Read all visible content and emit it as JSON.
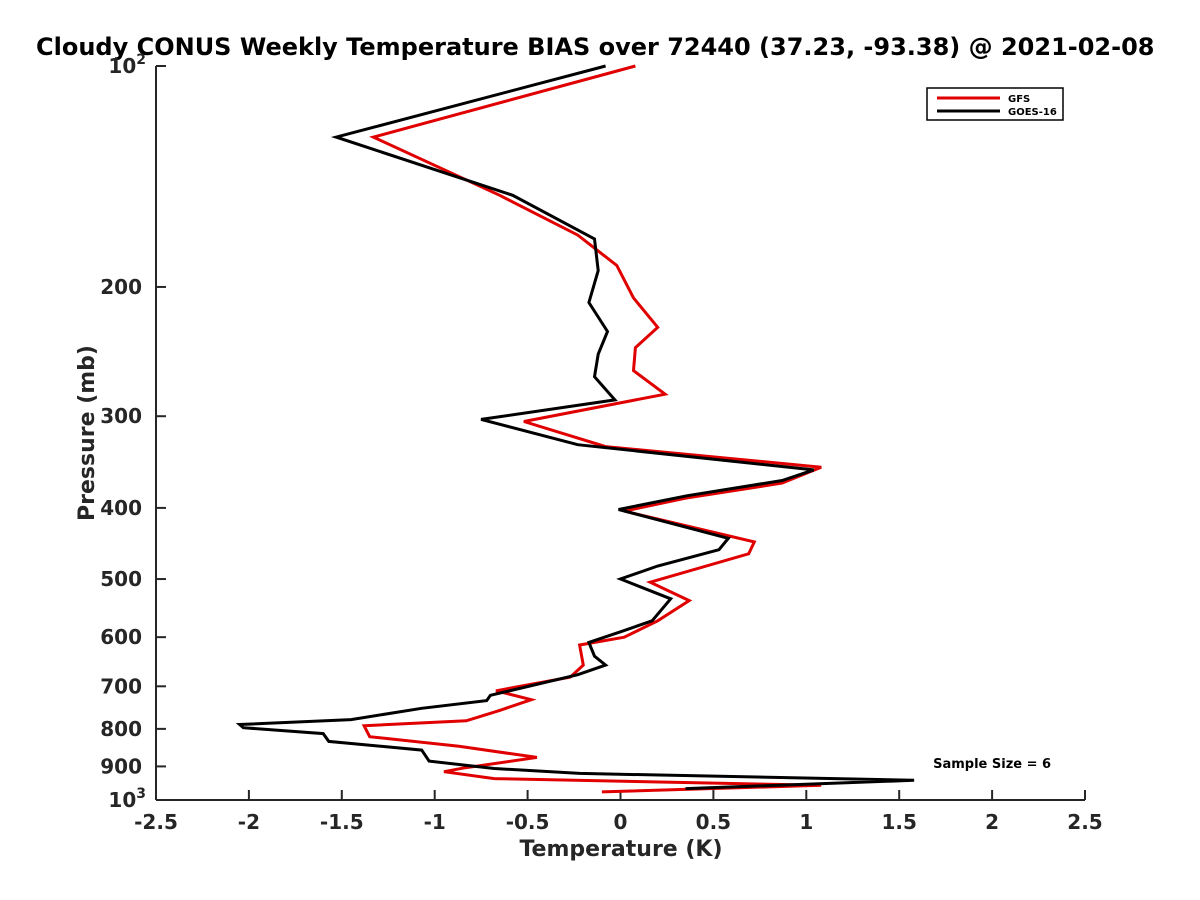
{
  "chart_data": {
    "type": "line",
    "title": "Cloudy CONUS Weekly Temperature BIAS over 72440 (37.23, -93.38) @ 2021-02-08",
    "xlabel": "Temperature (K)",
    "ylabel": "Pressure (mb)",
    "xlim": [
      -2.5,
      2.5
    ],
    "ylim": [
      1000,
      100
    ],
    "yscale": "log",
    "y_reversed": true,
    "grid": false,
    "legend_position": "top-right",
    "x_ticks": [
      {
        "value": -2.5,
        "label": "-2.5"
      },
      {
        "value": -2,
        "label": "-2"
      },
      {
        "value": -1.5,
        "label": "-1.5"
      },
      {
        "value": -1,
        "label": "-1"
      },
      {
        "value": -0.5,
        "label": "-0.5"
      },
      {
        "value": 0,
        "label": "0"
      },
      {
        "value": 0.5,
        "label": "0.5"
      },
      {
        "value": 1,
        "label": "1"
      },
      {
        "value": 1.5,
        "label": "1.5"
      },
      {
        "value": 2,
        "label": "2"
      },
      {
        "value": 2.5,
        "label": "2.5"
      }
    ],
    "y_ticks": [
      {
        "value": 100,
        "base": "10",
        "exp": "2"
      },
      {
        "value": 200,
        "label": "200"
      },
      {
        "value": 300,
        "label": "300"
      },
      {
        "value": 400,
        "label": "400"
      },
      {
        "value": 500,
        "label": "500"
      },
      {
        "value": 600,
        "label": "600"
      },
      {
        "value": 700,
        "label": "700"
      },
      {
        "value": 800,
        "label": "800"
      },
      {
        "value": 900,
        "label": "900"
      },
      {
        "value": 1000,
        "base": "10",
        "exp": "3"
      }
    ],
    "series": [
      {
        "name": "GFS",
        "color": "#e00000",
        "points": [
          [
            0.08,
            100
          ],
          [
            -1.33,
            125
          ],
          [
            -0.65,
            150
          ],
          [
            -0.23,
            170
          ],
          [
            -0.02,
            187
          ],
          [
            0.07,
            207
          ],
          [
            0.2,
            227
          ],
          [
            0.08,
            242
          ],
          [
            0.07,
            260
          ],
          [
            0.24,
            280
          ],
          [
            -0.52,
            305
          ],
          [
            -0.08,
            330
          ],
          [
            1.08,
            352
          ],
          [
            0.87,
            370
          ],
          [
            0.35,
            388
          ],
          [
            0.02,
            404
          ],
          [
            0.72,
            445
          ],
          [
            0.69,
            462
          ],
          [
            0.16,
            505
          ],
          [
            0.37,
            535
          ],
          [
            0.2,
            570
          ],
          [
            0.02,
            600
          ],
          [
            -0.22,
            615
          ],
          [
            -0.2,
            655
          ],
          [
            -0.27,
            680
          ],
          [
            -0.67,
            710
          ],
          [
            -0.48,
            730
          ],
          [
            -0.65,
            755
          ],
          [
            -0.83,
            780
          ],
          [
            -1.38,
            792
          ],
          [
            -1.35,
            820
          ],
          [
            -0.87,
            845
          ],
          [
            -0.45,
            875
          ],
          [
            -0.85,
            905
          ],
          [
            -0.95,
            915
          ],
          [
            -0.68,
            935
          ],
          [
            1.08,
            955
          ],
          [
            -0.1,
            975
          ]
        ]
      },
      {
        "name": "GOES-16",
        "color": "#000000",
        "points": [
          [
            -0.08,
            100
          ],
          [
            -1.53,
            125
          ],
          [
            -0.58,
            150
          ],
          [
            -0.14,
            172
          ],
          [
            -0.12,
            190
          ],
          [
            -0.17,
            210
          ],
          [
            -0.07,
            230
          ],
          [
            -0.12,
            247
          ],
          [
            -0.14,
            265
          ],
          [
            -0.03,
            285
          ],
          [
            -0.75,
            303
          ],
          [
            -0.23,
            328
          ],
          [
            1.04,
            355
          ],
          [
            0.87,
            367
          ],
          [
            0.36,
            385
          ],
          [
            -0.01,
            402
          ],
          [
            0.58,
            440
          ],
          [
            0.53,
            456
          ],
          [
            0.2,
            480
          ],
          [
            0.0,
            500
          ],
          [
            0.27,
            532
          ],
          [
            0.17,
            570
          ],
          [
            0.0,
            590
          ],
          [
            -0.17,
            610
          ],
          [
            -0.14,
            637
          ],
          [
            -0.08,
            655
          ],
          [
            -0.23,
            675
          ],
          [
            -0.7,
            720
          ],
          [
            -0.72,
            732
          ],
          [
            -1.07,
            750
          ],
          [
            -1.45,
            777
          ],
          [
            -2.05,
            789
          ],
          [
            -2.03,
            797
          ],
          [
            -1.6,
            812
          ],
          [
            -1.57,
            832
          ],
          [
            -1.07,
            855
          ],
          [
            -1.03,
            885
          ],
          [
            -0.68,
            906
          ],
          [
            -0.22,
            920
          ],
          [
            1.58,
            940
          ],
          [
            0.35,
            965
          ]
        ]
      }
    ],
    "annotations": [
      {
        "text": "Sample Size = 6",
        "x": 2.0,
        "y": 905
      }
    ]
  }
}
